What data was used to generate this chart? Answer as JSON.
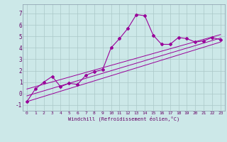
{
  "xlabel": "Windchill (Refroidissement éolien,°C)",
  "background_color": "#cce8e8",
  "line_color": "#990099",
  "xlim": [
    -0.5,
    23.5
  ],
  "ylim": [
    -1.5,
    7.8
  ],
  "xticks": [
    0,
    1,
    2,
    3,
    4,
    5,
    6,
    7,
    8,
    9,
    10,
    11,
    12,
    13,
    14,
    15,
    16,
    17,
    18,
    19,
    20,
    21,
    22,
    23
  ],
  "yticks": [
    -1,
    0,
    1,
    2,
    3,
    4,
    5,
    6,
    7
  ],
  "grid_color": "#aac8c8",
  "series1_x": [
    0,
    1,
    2,
    3,
    4,
    5,
    6,
    7,
    8,
    9,
    10,
    11,
    12,
    13,
    14,
    15,
    16,
    17,
    18,
    19,
    20,
    21,
    22,
    23
  ],
  "series1_y": [
    -0.7,
    0.4,
    1.0,
    1.5,
    0.6,
    0.9,
    0.8,
    1.6,
    1.9,
    2.1,
    4.0,
    4.8,
    5.7,
    6.9,
    6.8,
    5.1,
    4.3,
    4.3,
    4.9,
    4.8,
    4.5,
    4.6,
    4.9,
    4.7
  ],
  "series2_x": [
    0,
    23
  ],
  "series2_y": [
    -0.7,
    4.5
  ],
  "series3_x": [
    0,
    23
  ],
  "series3_y": [
    -0.2,
    4.85
  ],
  "series4_x": [
    0,
    23
  ],
  "series4_y": [
    0.4,
    5.15
  ]
}
